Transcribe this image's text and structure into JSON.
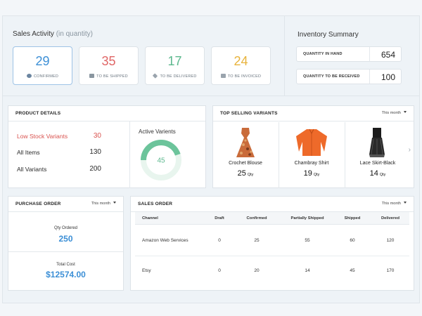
{
  "sales_activity": {
    "title": "Sales Activity",
    "title_suffix": "(in quantity)",
    "cards": [
      {
        "value": "29",
        "label": "CONFIRMED",
        "color": "#3c8fd6",
        "icon": "check-circle-icon"
      },
      {
        "value": "35",
        "label": "TO BE SHIPPED",
        "color": "#e06666",
        "icon": "truck-icon"
      },
      {
        "value": "17",
        "label": "TO BE DELIVERED",
        "color": "#5cb88e",
        "icon": "box-icon"
      },
      {
        "value": "24",
        "label": "TO BE INVOICED",
        "color": "#e8b33c",
        "icon": "invoice-icon"
      }
    ]
  },
  "inventory_summary": {
    "title": "Inventory Summary",
    "rows": [
      {
        "label": "QUANTITY IN HAND",
        "value": "654"
      },
      {
        "label": "QUANTITY TO BE RECEIVED",
        "value": "100"
      }
    ]
  },
  "product_details": {
    "title": "PRODUCT DETAILS",
    "rows": [
      {
        "label": "Low Stock Variants",
        "value": "30"
      },
      {
        "label": "All Items",
        "value": "130"
      },
      {
        "label": "All Variants",
        "value": "200"
      }
    ],
    "active_title": "Active Varients",
    "active_value": "45",
    "active_fraction": 0.45,
    "gauge_color": "#6cc49b"
  },
  "top_selling": {
    "title": "TOP SELLING VARIANTS",
    "period": "This month",
    "items": [
      {
        "name": "Crochet Blouse",
        "qty": "25",
        "unit": "Qty"
      },
      {
        "name": "Chambray Shirt",
        "qty": "19",
        "unit": "Qty"
      },
      {
        "name": "Lace Skirt-Black",
        "qty": "14",
        "unit": "Qty"
      }
    ]
  },
  "purchase_order": {
    "title": "PURCHASE ORDER",
    "period": "This month",
    "qty_label": "Qty Ordered",
    "qty_value": "250",
    "cost_label": "Total Cost",
    "cost_value": "$12574.00"
  },
  "sales_order": {
    "title": "SALES ORDER",
    "period": "This month",
    "columns": [
      "Channel",
      "Draft",
      "Confirmed",
      "Partially Shipped",
      "Shipped",
      "Delivered"
    ],
    "rows": [
      [
        "Amazon Web Services",
        "0",
        "25",
        "55",
        "60",
        "120"
      ],
      [
        "Etsy",
        "0",
        "20",
        "14",
        "45",
        "170"
      ]
    ]
  }
}
